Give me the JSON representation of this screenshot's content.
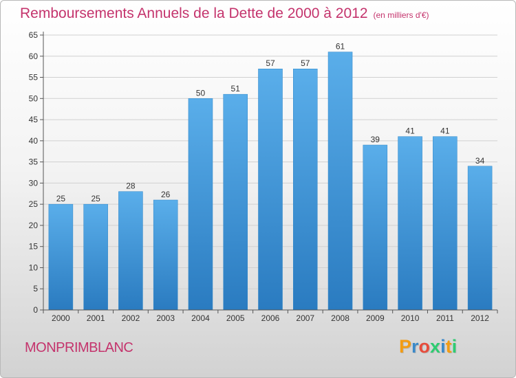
{
  "header": {
    "title": "Remboursements Annuels de la Dette de 2000 à 2012",
    "unit_note": "(en milliers d'€)"
  },
  "footer": {
    "commune": "MONPRIMBLANC",
    "logo_letters": [
      "P",
      "r",
      "o",
      "x",
      "i",
      "t",
      "i"
    ],
    "logo_colors": [
      "#f39c12",
      "#3a89c9",
      "#e74c3c",
      "#2ecc71",
      "#3a89c9",
      "#f39c12",
      "#2ecc71"
    ]
  },
  "chart_data": {
    "type": "bar",
    "categories": [
      "2000",
      "2001",
      "2002",
      "2003",
      "2004",
      "2005",
      "2006",
      "2007",
      "2008",
      "2009",
      "2010",
      "2011",
      "2012"
    ],
    "values": [
      25,
      25,
      28,
      26,
      50,
      51,
      57,
      57,
      61,
      39,
      41,
      41,
      34
    ],
    "title": "Remboursements Annuels de la Dette de 2000 à 2012",
    "ylim": [
      0,
      65
    ],
    "yticks": [
      0,
      5,
      10,
      15,
      20,
      25,
      30,
      35,
      40,
      45,
      50,
      55,
      60,
      65
    ],
    "grid": true,
    "bar_color": "#3f97d8"
  }
}
